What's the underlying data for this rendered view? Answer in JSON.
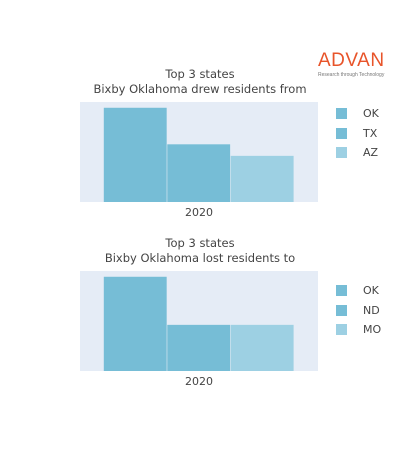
{
  "logo": {
    "word": "ADVAN",
    "tagline": "Research through Technology"
  },
  "chart_data": [
    {
      "type": "bar",
      "title": "Top 3 states",
      "subtitle": "Bixby Oklahoma drew residents from",
      "categories": [
        "2020"
      ],
      "series": [
        {
          "name": "OK",
          "values": [
            49
          ],
          "color": "#76bdd6"
        },
        {
          "name": "TX",
          "values": [
            30
          ],
          "color": "#76bdd6"
        },
        {
          "name": "AZ",
          "values": [
            24
          ],
          "color": "#9dd0e3"
        }
      ],
      "ylim": [
        0,
        52
      ],
      "grid": false,
      "legend": "right",
      "plot_background": "#e5ecf6"
    },
    {
      "type": "bar",
      "title": "Top 3 states",
      "subtitle": "Bixby Oklahoma lost residents to",
      "categories": [
        "2020"
      ],
      "series": [
        {
          "name": "OK",
          "values": [
            49
          ],
          "color": "#76bdd6"
        },
        {
          "name": "ND",
          "values": [
            24
          ],
          "color": "#76bdd6"
        },
        {
          "name": "MO",
          "values": [
            24
          ],
          "color": "#9dd0e3"
        }
      ],
      "ylim": [
        0,
        52
      ],
      "grid": false,
      "legend": "right",
      "plot_background": "#e5ecf6"
    }
  ]
}
